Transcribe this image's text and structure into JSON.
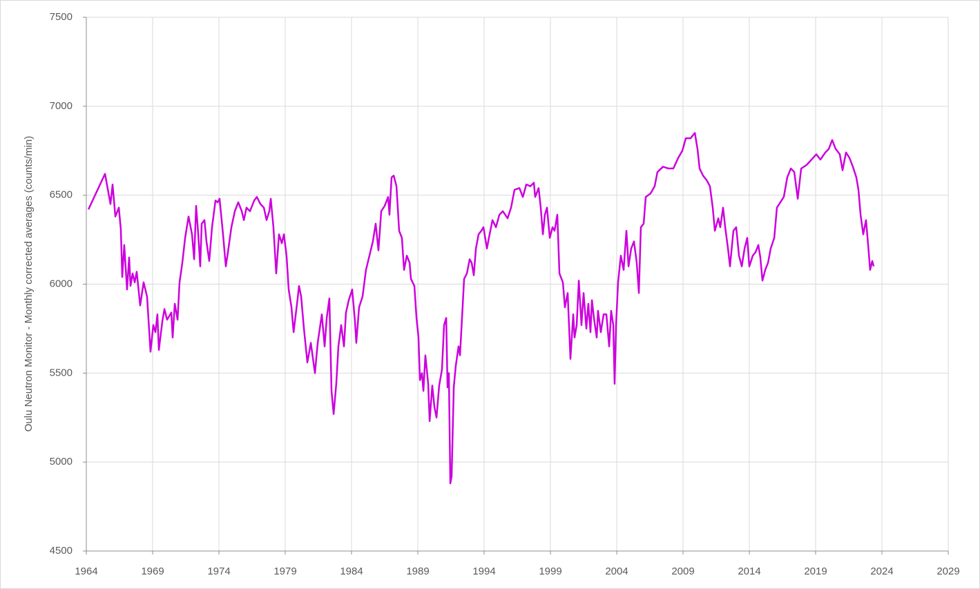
{
  "chart_data": {
    "type": "line",
    "y_label": "Oulu Neutron Monitor - Monthly corrected averages (counts/min)",
    "xlim": [
      1964,
      2029
    ],
    "xticks": [
      1964,
      1969,
      1974,
      1979,
      1984,
      1989,
      1994,
      1999,
      2004,
      2009,
      2014,
      2019,
      2024,
      2029
    ],
    "ylim": [
      4500,
      7500
    ],
    "yticks": [
      4500,
      5000,
      5500,
      6000,
      6500,
      7000,
      7500
    ],
    "grid": true,
    "series": [
      {
        "color": "#cc00dd",
        "x": [
          1964.16,
          1965.41,
          1965.82,
          1965.98,
          1966.19,
          1966.45,
          1966.6,
          1966.71,
          1966.86,
          1967.07,
          1967.23,
          1967.33,
          1967.49,
          1967.65,
          1967.8,
          1968.06,
          1968.32,
          1968.58,
          1968.84,
          1969.05,
          1969.21,
          1969.36,
          1969.47,
          1969.73,
          1969.89,
          1970.09,
          1970.41,
          1970.51,
          1970.67,
          1970.88,
          1971.03,
          1971.24,
          1971.45,
          1971.71,
          1971.97,
          1972.13,
          1972.28,
          1972.44,
          1972.59,
          1972.7,
          1972.91,
          1973.06,
          1973.27,
          1973.48,
          1973.74,
          1973.9,
          1974.05,
          1974.31,
          1974.52,
          1974.68,
          1974.94,
          1975.2,
          1975.46,
          1975.72,
          1975.88,
          1976.08,
          1976.34,
          1976.66,
          1976.86,
          1977.13,
          1977.39,
          1977.59,
          1977.8,
          1977.91,
          1978.11,
          1978.32,
          1978.53,
          1978.74,
          1978.9,
          1979.1,
          1979.26,
          1979.47,
          1979.63,
          1979.89,
          1980.04,
          1980.2,
          1980.41,
          1980.67,
          1980.93,
          1981.24,
          1981.45,
          1981.76,
          1981.97,
          1982.13,
          1982.33,
          1982.49,
          1982.65,
          1982.85,
          1983.01,
          1983.22,
          1983.43,
          1983.58,
          1983.79,
          1984.05,
          1984.26,
          1984.36,
          1984.57,
          1984.83,
          1985.09,
          1985.35,
          1985.61,
          1985.82,
          1986.03,
          1986.24,
          1986.5,
          1986.76,
          1986.86,
          1987.02,
          1987.18,
          1987.39,
          1987.59,
          1987.8,
          1987.96,
          1988.17,
          1988.38,
          1988.48,
          1988.74,
          1988.9,
          1989.05,
          1989.16,
          1989.31,
          1989.42,
          1989.57,
          1989.78,
          1989.89,
          1990.09,
          1990.25,
          1990.41,
          1990.61,
          1990.82,
          1990.98,
          1991.14,
          1991.24,
          1991.34,
          1991.45,
          1991.55,
          1991.71,
          1991.86,
          1992.07,
          1992.18,
          1992.39,
          1992.49,
          1992.7,
          1992.91,
          1993.06,
          1993.22,
          1993.38,
          1993.58,
          1993.79,
          1993.95,
          1994.21,
          1994.36,
          1994.63,
          1994.89,
          1995.15,
          1995.41,
          1995.77,
          1996.03,
          1996.29,
          1996.66,
          1996.92,
          1997.18,
          1997.49,
          1997.75,
          1997.85,
          1998.11,
          1998.27,
          1998.43,
          1998.58,
          1998.74,
          1998.95,
          1999.16,
          1999.31,
          1999.52,
          1999.68,
          1999.94,
          2000.09,
          2000.3,
          2000.51,
          2000.72,
          2000.82,
          2000.98,
          2001.14,
          2001.34,
          2001.5,
          2001.71,
          2001.86,
          2002.02,
          2002.13,
          2002.28,
          2002.49,
          2002.59,
          2002.8,
          2003.01,
          2003.22,
          2003.43,
          2003.58,
          2003.74,
          2003.84,
          2003.95,
          2004.1,
          2004.31,
          2004.52,
          2004.73,
          2004.89,
          2005.09,
          2005.3,
          2005.51,
          2005.67,
          2005.82,
          2006.03,
          2006.19,
          2006.55,
          2006.86,
          2007.07,
          2007.49,
          2007.91,
          2008.27,
          2008.64,
          2008.95,
          2009.21,
          2009.57,
          2009.89,
          2010.09,
          2010.25,
          2010.51,
          2010.82,
          2011.03,
          2011.24,
          2011.4,
          2011.66,
          2011.81,
          2012.02,
          2012.18,
          2012.39,
          2012.54,
          2012.8,
          2013.01,
          2013.22,
          2013.43,
          2013.64,
          2013.84,
          2014.0,
          2014.26,
          2014.47,
          2014.68,
          2014.83,
          2014.99,
          2015.2,
          2015.41,
          2015.61,
          2015.88,
          2016.08,
          2016.34,
          2016.6,
          2016.86,
          2017.13,
          2017.39,
          2017.65,
          2017.91,
          2018.32,
          2018.69,
          2019.05,
          2019.36,
          2019.73,
          2019.99,
          2020.25,
          2020.51,
          2020.82,
          2021.03,
          2021.29,
          2021.55,
          2021.81,
          2022.07,
          2022.23,
          2022.39,
          2022.59,
          2022.8,
          2022.96,
          2023.11,
          2023.27,
          2023.38
        ],
        "values": [
          6420,
          6620,
          6450,
          6560,
          6380,
          6430,
          6310,
          6040,
          6220,
          5970,
          6150,
          5990,
          6060,
          6010,
          6070,
          5880,
          6010,
          5930,
          5620,
          5770,
          5730,
          5830,
          5630,
          5790,
          5860,
          5800,
          5840,
          5700,
          5890,
          5800,
          6010,
          6120,
          6260,
          6380,
          6280,
          6140,
          6440,
          6280,
          6100,
          6340,
          6360,
          6240,
          6130,
          6320,
          6470,
          6460,
          6480,
          6280,
          6100,
          6180,
          6320,
          6410,
          6460,
          6410,
          6360,
          6430,
          6410,
          6470,
          6490,
          6450,
          6430,
          6360,
          6410,
          6480,
          6320,
          6060,
          6280,
          6230,
          6280,
          6160,
          5970,
          5870,
          5730,
          5890,
          5990,
          5930,
          5750,
          5560,
          5670,
          5500,
          5670,
          5830,
          5650,
          5810,
          5920,
          5400,
          5270,
          5440,
          5650,
          5770,
          5650,
          5840,
          5910,
          5970,
          5790,
          5670,
          5870,
          5930,
          6080,
          6160,
          6240,
          6340,
          6190,
          6410,
          6440,
          6490,
          6390,
          6600,
          6610,
          6550,
          6300,
          6260,
          6080,
          6160,
          6120,
          6030,
          5990,
          5810,
          5700,
          5460,
          5500,
          5400,
          5600,
          5440,
          5230,
          5430,
          5310,
          5250,
          5430,
          5520,
          5770,
          5810,
          5420,
          5500,
          4880,
          4920,
          5420,
          5540,
          5650,
          5600,
          5890,
          6030,
          6060,
          6140,
          6120,
          6050,
          6200,
          6280,
          6300,
          6320,
          6200,
          6260,
          6360,
          6320,
          6390,
          6410,
          6370,
          6430,
          6530,
          6540,
          6490,
          6560,
          6550,
          6570,
          6490,
          6540,
          6430,
          6280,
          6390,
          6430,
          6260,
          6320,
          6300,
          6390,
          6060,
          6010,
          5870,
          5950,
          5580,
          5830,
          5700,
          5770,
          6020,
          5770,
          5950,
          5750,
          5890,
          5730,
          5910,
          5810,
          5700,
          5850,
          5730,
          5830,
          5830,
          5650,
          5850,
          5770,
          5440,
          5770,
          6010,
          6160,
          6080,
          6300,
          6100,
          6200,
          6240,
          6120,
          5950,
          6320,
          6340,
          6490,
          6510,
          6550,
          6630,
          6660,
          6650,
          6650,
          6710,
          6750,
          6820,
          6820,
          6850,
          6760,
          6650,
          6610,
          6580,
          6550,
          6430,
          6300,
          6370,
          6320,
          6430,
          6320,
          6200,
          6100,
          6300,
          6320,
          6160,
          6100,
          6200,
          6260,
          6100,
          6160,
          6180,
          6220,
          6150,
          6020,
          6080,
          6120,
          6200,
          6260,
          6430,
          6460,
          6490,
          6600,
          6650,
          6630,
          6480,
          6650,
          6670,
          6700,
          6730,
          6700,
          6740,
          6760,
          6810,
          6760,
          6730,
          6640,
          6740,
          6710,
          6660,
          6600,
          6530,
          6390,
          6280,
          6360,
          6220,
          6080,
          6130,
          6100
        ]
      }
    ]
  }
}
